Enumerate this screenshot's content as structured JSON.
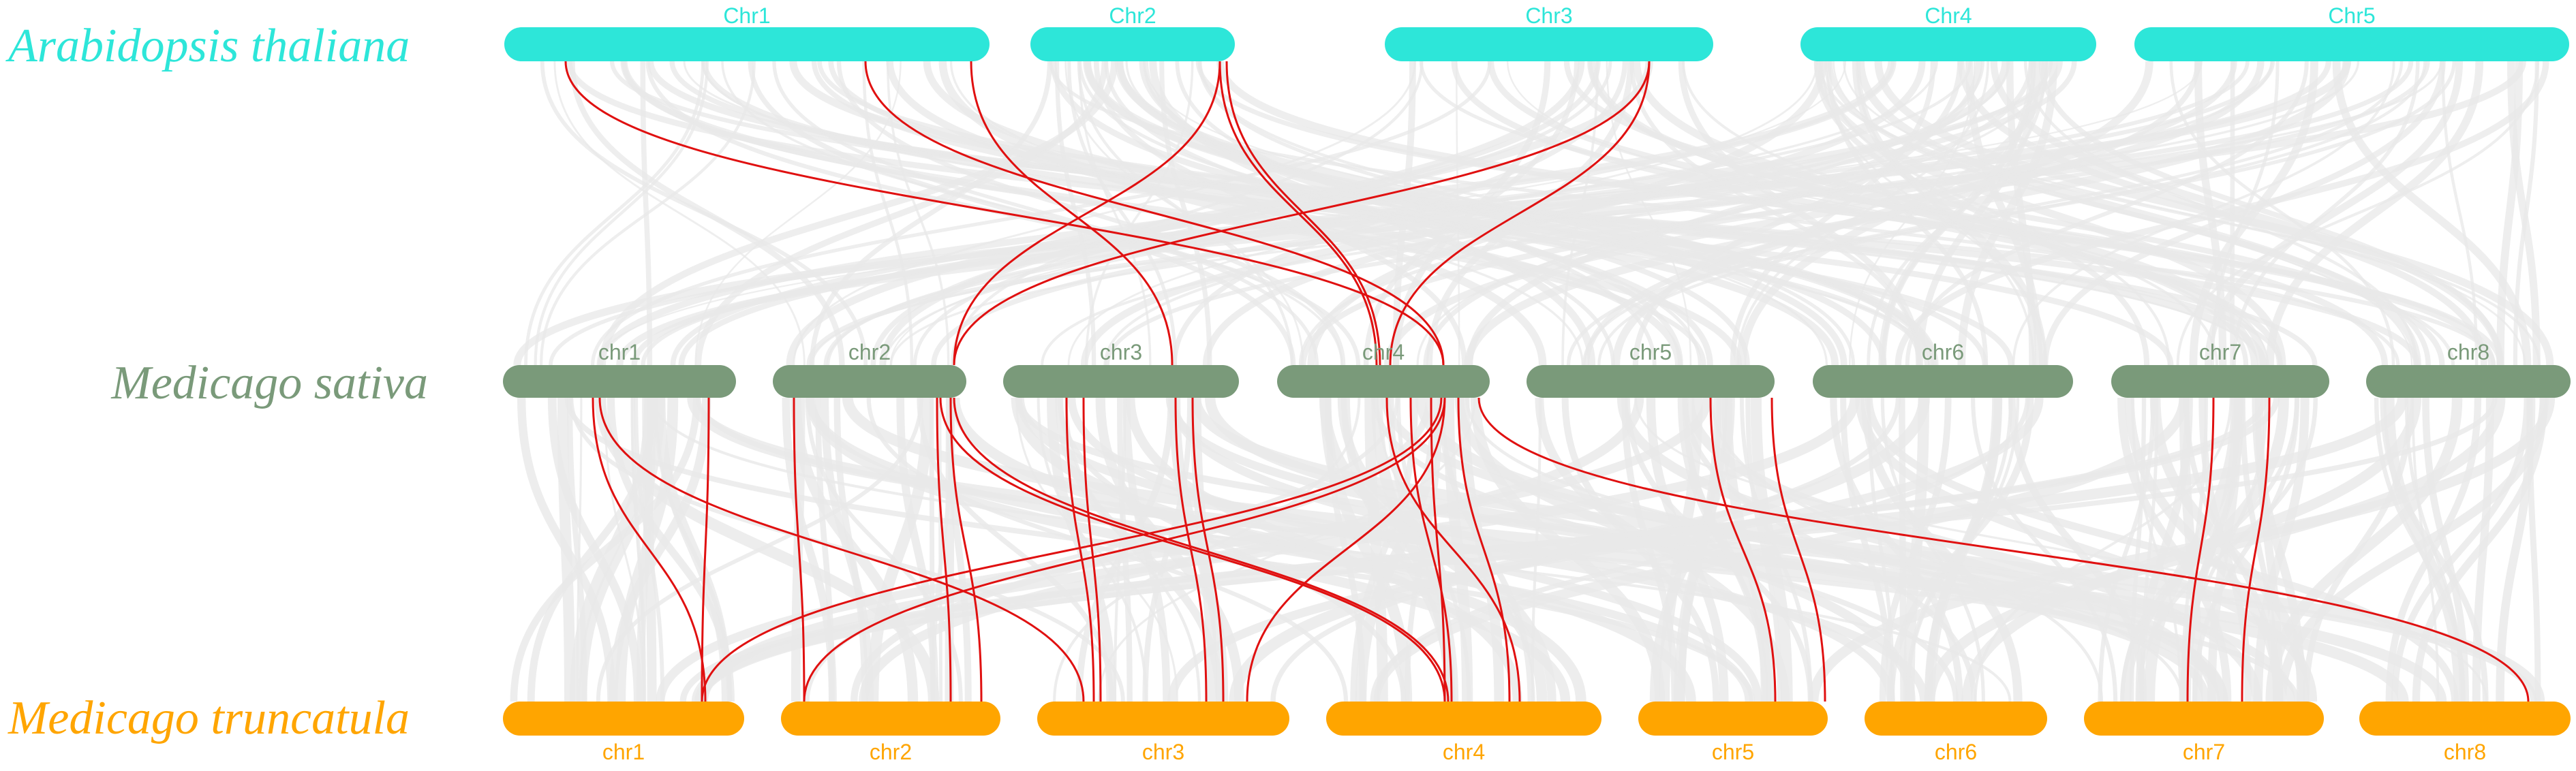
{
  "colors": {
    "arabidopsis": "#2de6d9",
    "sativa": "#7a9a7a",
    "truncatula": "#ffa500",
    "background_links": "#e8e8e8",
    "highlight_links": "#e01010"
  },
  "species": {
    "arabidopsis": "Arabidopsis thaliana",
    "sativa": "Medicago sativa",
    "truncatula": "Medicago truncatula"
  },
  "tracks": {
    "arabidopsis": [
      "Chr1",
      "Chr2",
      "Chr3",
      "Chr4",
      "Chr5"
    ],
    "sativa": [
      "chr1",
      "chr2",
      "chr3",
      "chr4",
      "chr5",
      "chr6",
      "chr7",
      "chr8"
    ],
    "truncatula": [
      "chr1",
      "chr2",
      "chr3",
      "chr4",
      "chr5",
      "chr6",
      "chr7",
      "chr8"
    ]
  },
  "highlighted_links": {
    "arabidopsis_to_sativa": [
      [
        "Chr1",
        "chr4"
      ],
      [
        "Chr1",
        "chr4"
      ],
      [
        "Chr1",
        "chr3"
      ],
      [
        "Chr2",
        "chr2"
      ],
      [
        "Chr2",
        "chr4"
      ],
      [
        "Chr2",
        "chr4"
      ],
      [
        "Chr3",
        "chr2"
      ],
      [
        "Chr3",
        "chr4"
      ]
    ],
    "sativa_to_truncatula": [
      [
        "chr1",
        "chr1"
      ],
      [
        "chr1",
        "chr1"
      ],
      [
        "chr1",
        "chr3"
      ],
      [
        "chr2",
        "chr2"
      ],
      [
        "chr2",
        "chr2"
      ],
      [
        "chr2",
        "chr2"
      ],
      [
        "chr2",
        "chr4"
      ],
      [
        "chr2",
        "chr4"
      ],
      [
        "chr3",
        "chr3"
      ],
      [
        "chr3",
        "chr3"
      ],
      [
        "chr3",
        "chr3"
      ],
      [
        "chr3",
        "chr3"
      ],
      [
        "chr4",
        "chr1"
      ],
      [
        "chr4",
        "chr2"
      ],
      [
        "chr4",
        "chr3"
      ],
      [
        "chr4",
        "chr4"
      ],
      [
        "chr4",
        "chr4"
      ],
      [
        "chr4",
        "chr4"
      ],
      [
        "chr4",
        "chr4"
      ],
      [
        "chr4",
        "chr8"
      ],
      [
        "chr5",
        "chr5"
      ],
      [
        "chr5",
        "chr5"
      ],
      [
        "chr7",
        "chr7"
      ],
      [
        "chr7",
        "chr7"
      ]
    ]
  }
}
